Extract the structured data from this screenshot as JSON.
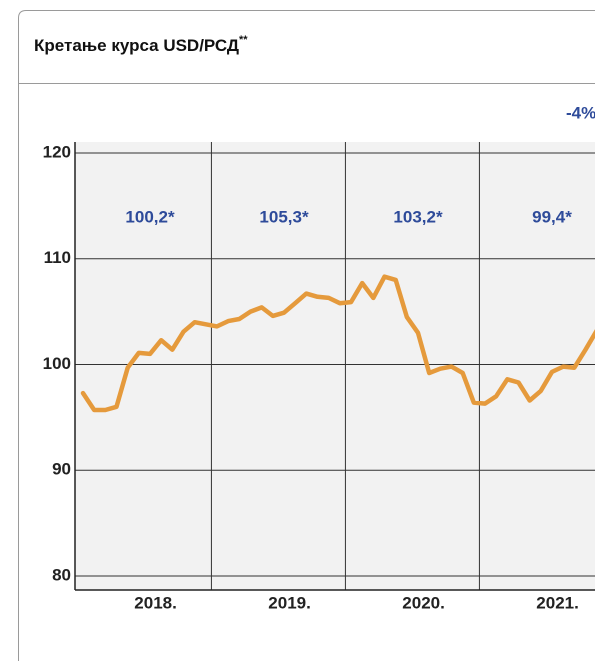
{
  "chart_data": {
    "type": "line",
    "title": "Кретање курса USD/РСД",
    "title_superscript": "**",
    "change_label": "-4%",
    "annotations": [
      "100,2*",
      "105,3*",
      "103,2*",
      "99,4*"
    ],
    "categories": [
      null,
      null,
      null,
      null,
      null,
      null,
      null,
      null,
      null,
      null,
      null,
      null,
      null,
      null,
      null,
      null,
      null,
      null,
      null,
      null,
      null,
      null,
      null,
      null,
      null,
      null,
      null,
      null,
      null,
      null,
      null,
      null,
      null,
      null,
      null,
      null,
      null,
      null,
      null,
      null,
      null,
      null,
      null,
      null,
      null,
      null,
      null
    ],
    "series": [
      {
        "color": "#e59a3c",
        "values": [
          97.3,
          95.7,
          95.7,
          96.0,
          99.7,
          101.1,
          101.0,
          102.3,
          101.4,
          103.1,
          104.0,
          103.8,
          103.6,
          104.1,
          104.3,
          105.0,
          105.4,
          104.6,
          104.9,
          105.8,
          106.7,
          106.4,
          106.3,
          105.8,
          105.9,
          107.7,
          106.3,
          108.3,
          108.0,
          104.5,
          103.0,
          99.2,
          99.6,
          99.8,
          99.2,
          96.4,
          96.3,
          97.0,
          98.6,
          98.3,
          96.6,
          97.5,
          99.3,
          99.8,
          99.7,
          101.4,
          103.2
        ]
      }
    ],
    "xticks": [
      {
        "value": 0,
        "label": "2018."
      },
      {
        "value": 12,
        "label": "2019."
      },
      {
        "value": 24,
        "label": "2020."
      },
      {
        "value": 36,
        "label": "2021."
      }
    ],
    "ylim": [
      80,
      120
    ],
    "yticks": [
      80,
      90,
      100,
      110,
      120
    ],
    "grid": true
  }
}
